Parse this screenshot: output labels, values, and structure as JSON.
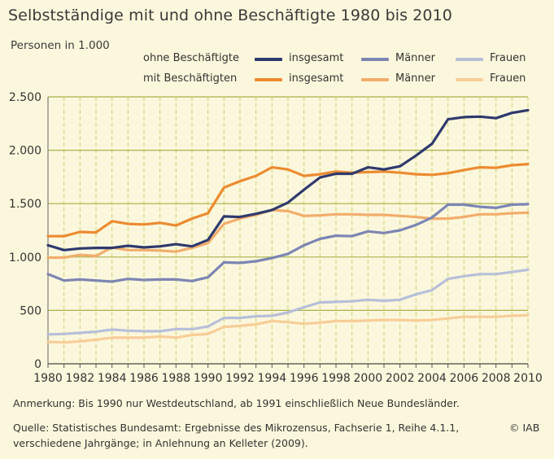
{
  "title": "Selbstständige mit und ohne Beschäftigte 1980 bis 2010",
  "subtitle": "Personen in 1.000",
  "legend": {
    "group1": "ohne Beschäftigte",
    "group2": "mit Beschäftigten",
    "items": [
      "insgesamt",
      "Männer",
      "Frauen"
    ]
  },
  "notes": {
    "remark": "Anmerkung: Bis 1990 nur Westdeutschland, ab 1991 einschließlich Neue Bundesländer.",
    "source_line1": "Quelle: Statistisches Bundesamt: Ergebnisse des Mikrozensus, Fachserie 1, Reihe 4.1.1,",
    "source_line2": "verschiedene Jahrgänge; in Anlehnung an Kelleter (2009).",
    "copyright": "© IAB"
  },
  "colors": {
    "background": "#fbf7dc",
    "grid_major": "#a8b24a",
    "grid_minor": "#c9d16a",
    "ohne_insgesamt": "#2f3a6e",
    "ohne_maenner": "#7b86b4",
    "ohne_frauen": "#b7bfd9",
    "mit_insgesamt": "#ec8b30",
    "mit_maenner": "#f2ad6c",
    "mit_frauen": "#f8cd98"
  },
  "chart_data": {
    "type": "line",
    "title": "Selbstständige mit und ohne Beschäftigte 1980 bis 2010",
    "ylabel": "Personen in 1.000",
    "xlabel": "",
    "ylim": [
      0,
      2500
    ],
    "yticks": [
      0,
      500,
      1000,
      1500,
      2000,
      2500
    ],
    "ytick_labels": [
      "0",
      "500",
      "1.000",
      "1.500",
      "2.000",
      "2.500"
    ],
    "xticks": [
      1980,
      1982,
      1984,
      1986,
      1988,
      1990,
      1992,
      1994,
      1996,
      1998,
      2000,
      2002,
      2004,
      2006,
      2008,
      2010
    ],
    "grid": true,
    "x": [
      1980,
      1981,
      1982,
      1983,
      1984,
      1985,
      1986,
      1987,
      1988,
      1989,
      1990,
      1991,
      1992,
      1993,
      1994,
      1995,
      1996,
      1997,
      1998,
      1999,
      2000,
      2001,
      2002,
      2003,
      2004,
      2005,
      2006,
      2007,
      2008,
      2009,
      2010
    ],
    "series": [
      {
        "group": "ohne Beschäftigte",
        "name": "insgesamt",
        "color": "#2f3a6e",
        "values": [
          1110,
          1065,
          1080,
          1085,
          1085,
          1105,
          1090,
          1100,
          1120,
          1100,
          1160,
          1380,
          1375,
          1405,
          1440,
          1510,
          1630,
          1745,
          1780,
          1780,
          1840,
          1820,
          1850,
          1950,
          2060,
          2290,
          2310,
          2315,
          2300,
          2350,
          2375
        ]
      },
      {
        "group": "ohne Beschäftigte",
        "name": "Männer",
        "color": "#7b86b4",
        "values": [
          840,
          780,
          790,
          780,
          770,
          795,
          785,
          790,
          790,
          775,
          810,
          950,
          945,
          960,
          990,
          1030,
          1110,
          1170,
          1200,
          1195,
          1240,
          1225,
          1250,
          1300,
          1370,
          1490,
          1490,
          1470,
          1460,
          1490,
          1495
        ]
      },
      {
        "group": "ohne Beschäftigte",
        "name": "Frauen",
        "color": "#b7bfd9",
        "values": [
          275,
          280,
          290,
          300,
          320,
          310,
          305,
          305,
          325,
          325,
          350,
          430,
          430,
          445,
          450,
          480,
          530,
          575,
          580,
          585,
          600,
          590,
          600,
          650,
          690,
          795,
          820,
          840,
          840,
          860,
          880
        ]
      },
      {
        "group": "mit Beschäftigten",
        "name": "insgesamt",
        "color": "#ec8b30",
        "values": [
          1195,
          1195,
          1235,
          1230,
          1335,
          1310,
          1305,
          1320,
          1295,
          1360,
          1410,
          1650,
          1710,
          1760,
          1840,
          1820,
          1760,
          1775,
          1800,
          1790,
          1795,
          1800,
          1790,
          1775,
          1770,
          1785,
          1815,
          1840,
          1835,
          1860,
          1870
        ]
      },
      {
        "group": "mit Beschäftigten",
        "name": "Männer",
        "color": "#f2ad6c",
        "values": [
          995,
          995,
          1020,
          1010,
          1090,
          1065,
          1065,
          1060,
          1050,
          1085,
          1130,
          1310,
          1360,
          1395,
          1440,
          1430,
          1385,
          1390,
          1400,
          1400,
          1395,
          1395,
          1385,
          1375,
          1360,
          1360,
          1375,
          1400,
          1400,
          1410,
          1415
        ]
      },
      {
        "group": "mit Beschäftigten",
        "name": "Frauen",
        "color": "#f8cd98",
        "values": [
          205,
          200,
          210,
          225,
          245,
          245,
          245,
          255,
          245,
          270,
          280,
          345,
          355,
          370,
          400,
          390,
          375,
          385,
          400,
          400,
          405,
          410,
          410,
          405,
          410,
          425,
          440,
          440,
          440,
          450,
          455
        ]
      }
    ]
  }
}
